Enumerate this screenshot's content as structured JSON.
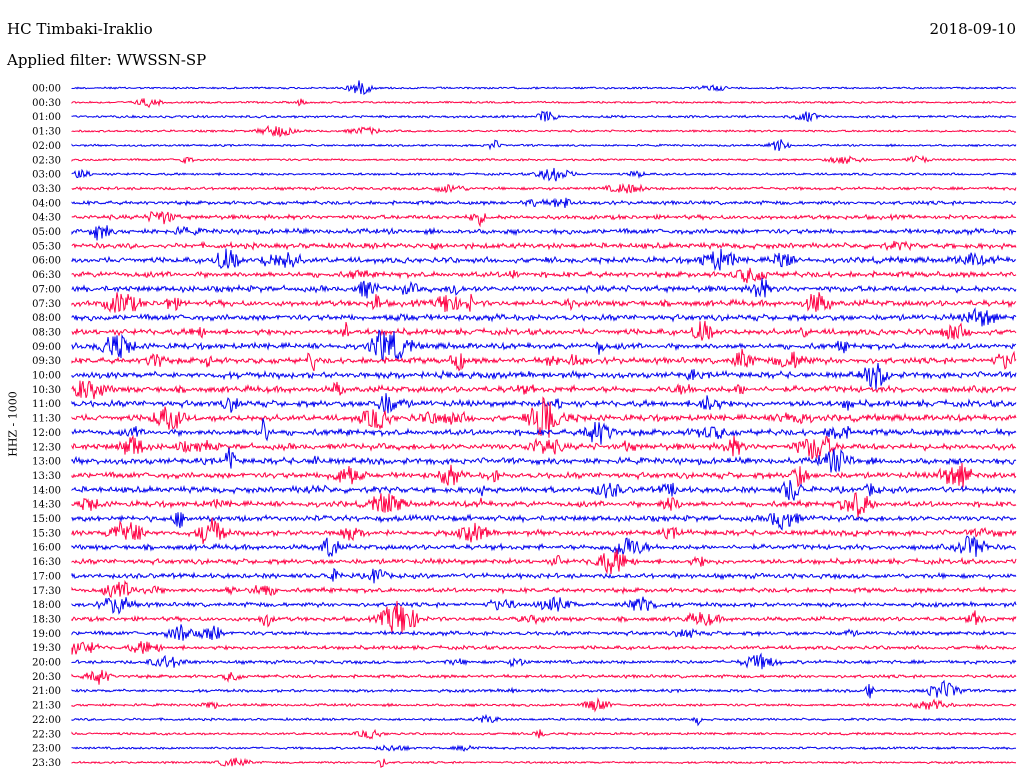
{
  "header": {
    "station": "HC Timbaki-Iraklio",
    "date": "2018-09-10",
    "filter": "Applied filter: WWSSN-SP",
    "channel": "HHZ - 1000"
  },
  "colors": {
    "trace_a": "#0000ee",
    "trace_b": "#ff0044",
    "background": "#ffffff",
    "text": "#000000"
  },
  "rows": [
    {
      "label": "00:00",
      "activity": 0.12
    },
    {
      "label": "00:30",
      "activity": 0.12
    },
    {
      "label": "01:00",
      "activity": 0.2
    },
    {
      "label": "01:30",
      "activity": 0.15
    },
    {
      "label": "02:00",
      "activity": 0.14
    },
    {
      "label": "02:30",
      "activity": 0.16
    },
    {
      "label": "03:00",
      "activity": 0.2
    },
    {
      "label": "03:30",
      "activity": 0.3
    },
    {
      "label": "04:00",
      "activity": 0.45
    },
    {
      "label": "04:30",
      "activity": 0.55
    },
    {
      "label": "05:00",
      "activity": 0.7
    },
    {
      "label": "05:30",
      "activity": 0.75
    },
    {
      "label": "06:00",
      "activity": 0.8
    },
    {
      "label": "06:30",
      "activity": 0.8
    },
    {
      "label": "07:00",
      "activity": 0.85
    },
    {
      "label": "07:30",
      "activity": 0.85
    },
    {
      "label": "08:00",
      "activity": 0.85
    },
    {
      "label": "08:30",
      "activity": 0.85
    },
    {
      "label": "09:00",
      "activity": 0.85
    },
    {
      "label": "09:30",
      "activity": 0.85
    },
    {
      "label": "10:00",
      "activity": 0.9
    },
    {
      "label": "10:30",
      "activity": 0.9
    },
    {
      "label": "11:00",
      "activity": 0.9
    },
    {
      "label": "11:30",
      "activity": 0.9
    },
    {
      "label": "12:00",
      "activity": 0.9
    },
    {
      "label": "12:30",
      "activity": 0.9
    },
    {
      "label": "13:00",
      "activity": 0.9
    },
    {
      "label": "13:30",
      "activity": 0.85
    },
    {
      "label": "14:00",
      "activity": 0.85
    },
    {
      "label": "14:30",
      "activity": 0.8
    },
    {
      "label": "15:00",
      "activity": 0.8
    },
    {
      "label": "15:30",
      "activity": 0.75
    },
    {
      "label": "16:00",
      "activity": 0.7
    },
    {
      "label": "16:30",
      "activity": 0.7
    },
    {
      "label": "17:00",
      "activity": 0.65
    },
    {
      "label": "17:30",
      "activity": 0.6
    },
    {
      "label": "18:00",
      "activity": 0.55
    },
    {
      "label": "18:30",
      "activity": 0.55
    },
    {
      "label": "19:00",
      "activity": 0.5
    },
    {
      "label": "19:30",
      "activity": 0.45
    },
    {
      "label": "20:00",
      "activity": 0.4
    },
    {
      "label": "20:30",
      "activity": 0.35
    },
    {
      "label": "21:00",
      "activity": 0.3
    },
    {
      "label": "21:30",
      "activity": 0.25
    },
    {
      "label": "22:00",
      "activity": 0.2
    },
    {
      "label": "22:30",
      "activity": 0.2
    },
    {
      "label": "23:00",
      "activity": 0.18
    },
    {
      "label": "23:30",
      "activity": 0.14
    }
  ]
}
